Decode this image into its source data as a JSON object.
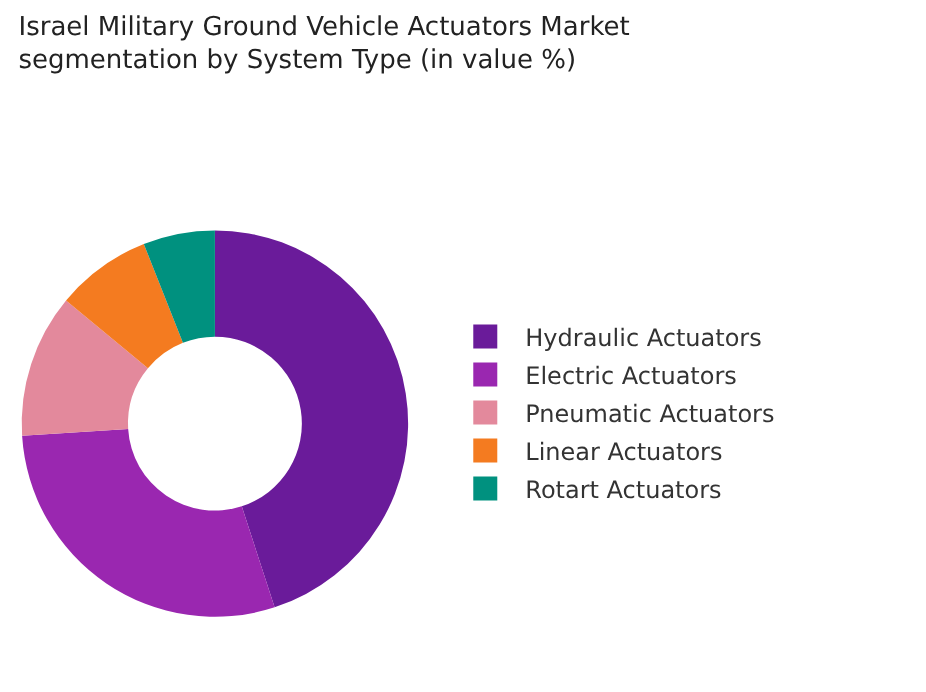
{
  "chart_data": {
    "type": "donut",
    "title": "Israel Military Ground Vehicle Actuators Market segmentation by System Type (in value %)",
    "categories": [
      "Hydraulic Actuators",
      "Electric Actuators",
      "Pneumatic Actuators",
      "Linear Actuators",
      "Rotart Actuators"
    ],
    "values": [
      45,
      29,
      12,
      8,
      6
    ],
    "colors": [
      "#6a1b9a",
      "#9a27b0",
      "#e3899c",
      "#f47b20",
      "#00917f"
    ],
    "legend": "right"
  }
}
